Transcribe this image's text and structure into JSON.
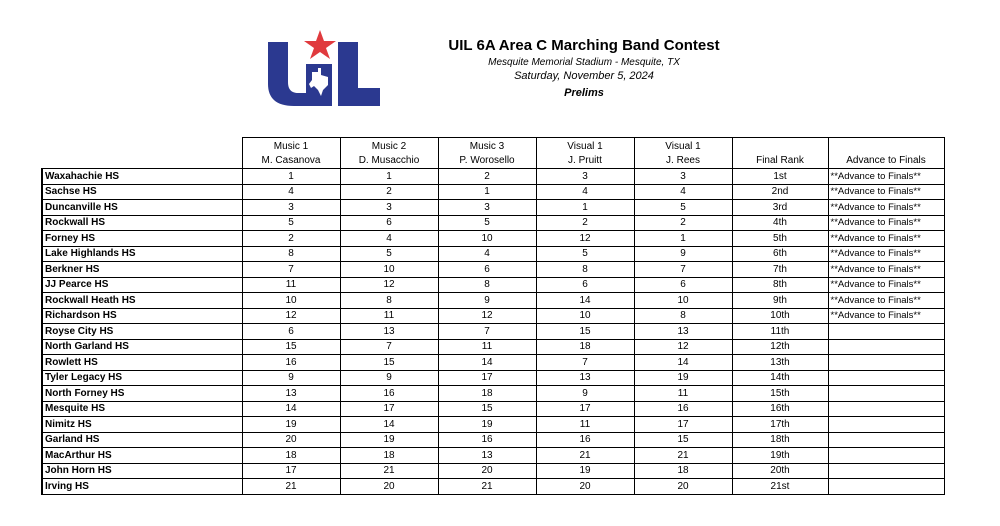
{
  "header": {
    "title": "UIL 6A Area C Marching Band Contest",
    "venue": "Mesquite Memorial Stadium - Mesquite, TX",
    "date": "Saturday, November 5, 2024",
    "round": "Prelims"
  },
  "logo": {
    "text": "UIL",
    "colors": {
      "blue": "#2b3990",
      "red": "#e03a3e"
    }
  },
  "columns": [
    {
      "line1": "Music 1",
      "line2": "M. Casanova"
    },
    {
      "line1": "Music 2",
      "line2": "D. Musacchio"
    },
    {
      "line1": "Music 3",
      "line2": "P. Worosello"
    },
    {
      "line1": "Visual 1",
      "line2": "J. Pruitt"
    },
    {
      "line1": "Visual 1",
      "line2": "J. Rees"
    },
    {
      "line1": "",
      "line2": "Final Rank"
    },
    {
      "line1": "",
      "line2": "Advance to Finals"
    }
  ],
  "rows": [
    {
      "school": "Waxahachie HS",
      "scores": [
        "1",
        "1",
        "2",
        "3",
        "3"
      ],
      "rank": "1st",
      "advance": "**Advance to Finals**"
    },
    {
      "school": "Sachse HS",
      "scores": [
        "4",
        "2",
        "1",
        "4",
        "4"
      ],
      "rank": "2nd",
      "advance": "**Advance to Finals**"
    },
    {
      "school": "Duncanville HS",
      "scores": [
        "3",
        "3",
        "3",
        "1",
        "5"
      ],
      "rank": "3rd",
      "advance": "**Advance to Finals**"
    },
    {
      "school": "Rockwall HS",
      "scores": [
        "5",
        "6",
        "5",
        "2",
        "2"
      ],
      "rank": "4th",
      "advance": "**Advance to Finals**"
    },
    {
      "school": "Forney HS",
      "scores": [
        "2",
        "4",
        "10",
        "12",
        "1"
      ],
      "rank": "5th",
      "advance": "**Advance to Finals**"
    },
    {
      "school": "Lake Highlands HS",
      "scores": [
        "8",
        "5",
        "4",
        "5",
        "9"
      ],
      "rank": "6th",
      "advance": "**Advance to Finals**"
    },
    {
      "school": "Berkner HS",
      "scores": [
        "7",
        "10",
        "6",
        "8",
        "7"
      ],
      "rank": "7th",
      "advance": "**Advance to Finals**"
    },
    {
      "school": "JJ Pearce HS",
      "scores": [
        "11",
        "12",
        "8",
        "6",
        "6"
      ],
      "rank": "8th",
      "advance": "**Advance to Finals**"
    },
    {
      "school": "Rockwall Heath HS",
      "scores": [
        "10",
        "8",
        "9",
        "14",
        "10"
      ],
      "rank": "9th",
      "advance": "**Advance to Finals**"
    },
    {
      "school": "Richardson HS",
      "scores": [
        "12",
        "11",
        "12",
        "10",
        "8"
      ],
      "rank": "10th",
      "advance": "**Advance to Finals**"
    },
    {
      "school": "Royse City HS",
      "scores": [
        "6",
        "13",
        "7",
        "15",
        "13"
      ],
      "rank": "11th",
      "advance": ""
    },
    {
      "school": "North Garland HS",
      "scores": [
        "15",
        "7",
        "11",
        "18",
        "12"
      ],
      "rank": "12th",
      "advance": ""
    },
    {
      "school": "Rowlett HS",
      "scores": [
        "16",
        "15",
        "14",
        "7",
        "14"
      ],
      "rank": "13th",
      "advance": ""
    },
    {
      "school": "Tyler Legacy HS",
      "scores": [
        "9",
        "9",
        "17",
        "13",
        "19"
      ],
      "rank": "14th",
      "advance": ""
    },
    {
      "school": "North Forney HS",
      "scores": [
        "13",
        "16",
        "18",
        "9",
        "11"
      ],
      "rank": "15th",
      "advance": ""
    },
    {
      "school": "Mesquite HS",
      "scores": [
        "14",
        "17",
        "15",
        "17",
        "16"
      ],
      "rank": "16th",
      "advance": ""
    },
    {
      "school": "Nimitz HS",
      "scores": [
        "19",
        "14",
        "19",
        "11",
        "17"
      ],
      "rank": "17th",
      "advance": ""
    },
    {
      "school": "Garland HS",
      "scores": [
        "20",
        "19",
        "16",
        "16",
        "15"
      ],
      "rank": "18th",
      "advance": ""
    },
    {
      "school": "MacArthur HS",
      "scores": [
        "18",
        "18",
        "13",
        "21",
        "21"
      ],
      "rank": "19th",
      "advance": ""
    },
    {
      "school": "John Horn HS",
      "scores": [
        "17",
        "21",
        "20",
        "19",
        "18"
      ],
      "rank": "20th",
      "advance": ""
    },
    {
      "school": "Irving HS",
      "scores": [
        "21",
        "20",
        "21",
        "20",
        "20"
      ],
      "rank": "21st",
      "advance": ""
    }
  ]
}
